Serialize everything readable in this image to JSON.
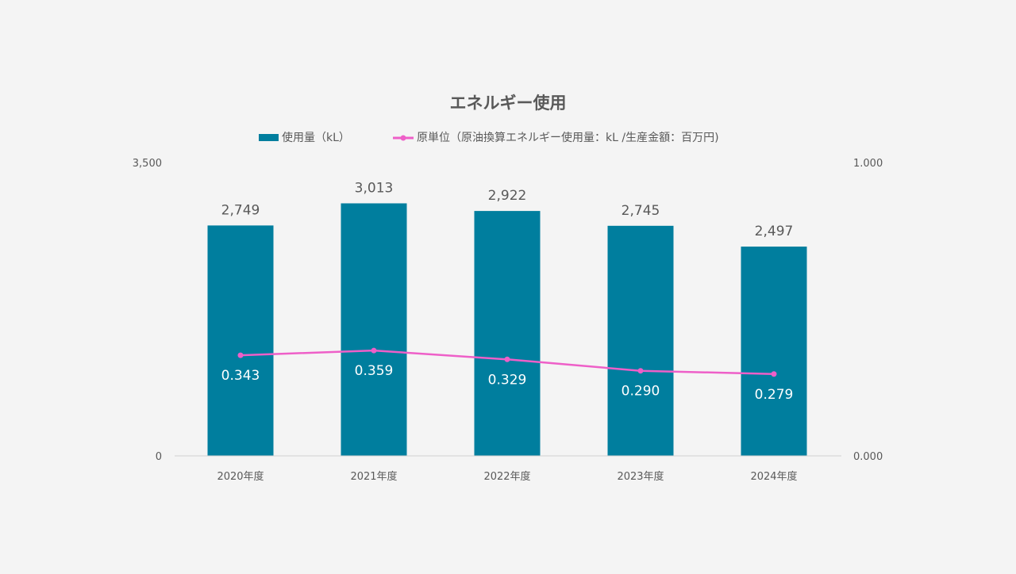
{
  "chart_data": {
    "type": "bar+line",
    "title": "エネルギー使用",
    "categories": [
      "2020年度",
      "2021年度",
      "2022年度",
      "2023年度",
      "2024年度"
    ],
    "series": [
      {
        "name": "使用量（kL）",
        "type": "bar",
        "axis": "left",
        "values": [
          2749,
          3013,
          2922,
          2745,
          2497
        ],
        "labels": [
          "2,749",
          "3,013",
          "2,922",
          "2,745",
          "2,497"
        ],
        "color": "#007e9e"
      },
      {
        "name": "原単位（原油換算エネルギー使用量：kL /生産金額：百万円)",
        "type": "line",
        "axis": "right",
        "values": [
          0.343,
          0.359,
          0.329,
          0.29,
          0.279
        ],
        "labels": [
          "0.343",
          "0.359",
          "0.329",
          "0.290",
          "0.279"
        ],
        "color": "#ee5fc8"
      }
    ],
    "y_left": {
      "range": [
        0,
        3500
      ],
      "ticks": [
        "0",
        "3,500"
      ]
    },
    "y_right": {
      "range": [
        0,
        1
      ],
      "ticks": [
        "0.000",
        "1.000"
      ]
    },
    "legend": "top",
    "grid": false
  }
}
